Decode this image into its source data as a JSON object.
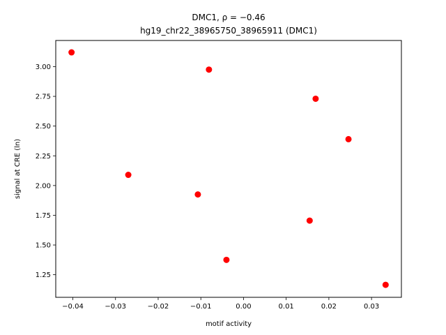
{
  "chart_data": {
    "type": "scatter",
    "title_line1": "DMC1, ρ = −0.46",
    "title_line2": "hg19_chr22_38965750_38965911 (DMC1)",
    "xlabel": "motif activity",
    "ylabel": "signal at CRE (ln)",
    "xlim": [
      -0.044,
      0.037
    ],
    "ylim": [
      1.06,
      3.22
    ],
    "x_ticks": [
      -0.04,
      -0.03,
      -0.02,
      -0.01,
      0.0,
      0.01,
      0.02,
      0.03
    ],
    "x_tick_labels": [
      "−0.04",
      "−0.03",
      "−0.02",
      "−0.01",
      "0.00",
      "0.01",
      "0.02",
      "0.03"
    ],
    "y_ticks": [
      1.25,
      1.5,
      1.75,
      2.0,
      2.25,
      2.5,
      2.75,
      3.0
    ],
    "y_tick_labels": [
      "1.25",
      "1.50",
      "1.75",
      "2.00",
      "2.25",
      "2.50",
      "2.75",
      "3.00"
    ],
    "marker_color": "#ff0000",
    "grid": false,
    "points": [
      {
        "x": -0.0403,
        "y": 3.12
      },
      {
        "x": -0.0081,
        "y": 2.975
      },
      {
        "x": 0.0169,
        "y": 2.73
      },
      {
        "x": 0.0246,
        "y": 2.39
      },
      {
        "x": -0.027,
        "y": 2.09
      },
      {
        "x": -0.0107,
        "y": 1.925
      },
      {
        "x": 0.0155,
        "y": 1.705
      },
      {
        "x": -0.004,
        "y": 1.375
      },
      {
        "x": 0.0333,
        "y": 1.165
      }
    ]
  }
}
